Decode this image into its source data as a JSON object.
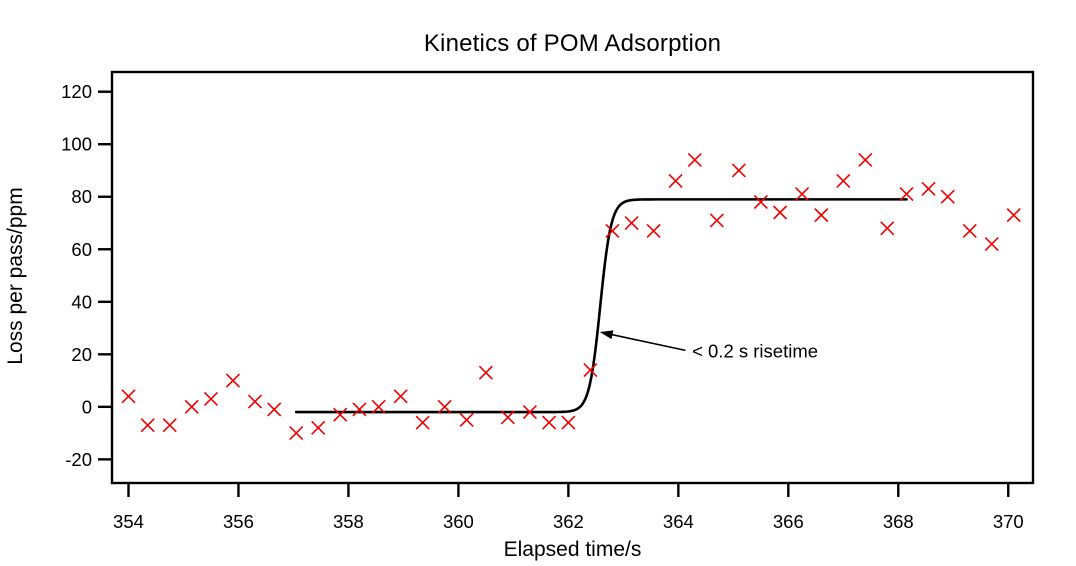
{
  "chart_data": {
    "type": "scatter",
    "title": "Kinetics of POM Adsorption",
    "xlabel": "Elapsed time/s",
    "ylabel": "Loss per pass/ppm",
    "xlim": [
      353.7,
      370.45
    ],
    "ylim": [
      -29,
      127.5
    ],
    "x_ticks": [
      354,
      356,
      358,
      360,
      362,
      364,
      366,
      368,
      370
    ],
    "y_ticks": [
      -20,
      0,
      20,
      40,
      60,
      80,
      100,
      120
    ],
    "grid": false,
    "legend": false,
    "axis_color": "#000000",
    "series": [
      {
        "name": "loss-per-pass-data",
        "type": "scatter",
        "marker": "x",
        "color": "#f00000",
        "points": [
          [
            354.0,
            4
          ],
          [
            354.35,
            -7
          ],
          [
            354.75,
            -7
          ],
          [
            355.15,
            0
          ],
          [
            355.5,
            3
          ],
          [
            355.9,
            10
          ],
          [
            356.3,
            2
          ],
          [
            356.65,
            -1
          ],
          [
            357.05,
            -10
          ],
          [
            357.45,
            -8
          ],
          [
            357.85,
            -3
          ],
          [
            358.2,
            -1
          ],
          [
            358.55,
            0
          ],
          [
            358.95,
            4
          ],
          [
            359.35,
            -6
          ],
          [
            359.75,
            0
          ],
          [
            360.15,
            -5
          ],
          [
            360.5,
            13
          ],
          [
            360.9,
            -4
          ],
          [
            361.3,
            -2
          ],
          [
            361.65,
            -6
          ],
          [
            362.0,
            -6
          ],
          [
            362.4,
            14
          ],
          [
            362.8,
            67
          ],
          [
            363.15,
            70
          ],
          [
            363.55,
            67
          ],
          [
            363.95,
            86
          ],
          [
            364.3,
            94
          ],
          [
            364.7,
            71
          ],
          [
            365.1,
            90
          ],
          [
            365.5,
            78
          ],
          [
            365.85,
            74
          ],
          [
            366.25,
            81
          ],
          [
            366.6,
            73
          ],
          [
            367.0,
            86
          ],
          [
            367.4,
            94
          ],
          [
            367.8,
            68
          ],
          [
            368.15,
            81
          ],
          [
            368.55,
            83
          ],
          [
            368.9,
            80
          ],
          [
            369.3,
            67
          ],
          [
            369.7,
            62
          ],
          [
            370.1,
            73
          ]
        ]
      },
      {
        "name": "step-fit-line",
        "type": "line",
        "color": "#000000",
        "fit": {
          "baseline": -2,
          "plateau": 79,
          "center": 362.58,
          "tau": 0.1,
          "t_start": 357.05,
          "t_end": 368.15
        }
      }
    ],
    "annotation": {
      "text": "< 0.2 s risetime",
      "arrow_head": [
        362.57,
        28.5
      ],
      "arrow_tail": [
        364.13,
        21.5
      ],
      "text_pos": [
        364.25,
        21
      ]
    }
  }
}
